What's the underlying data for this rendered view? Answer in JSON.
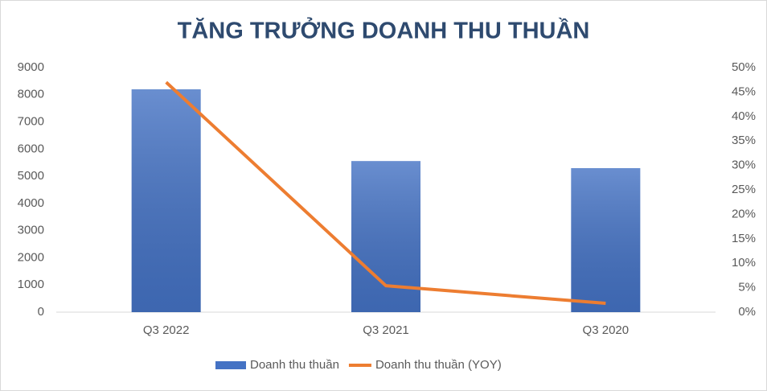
{
  "chart_data": {
    "type": "bar-line",
    "title": "TĂNG TRƯỞNG DOANH THU THUẦN",
    "categories": [
      "Q3 2022",
      "Q3 2021",
      "Q3 2020"
    ],
    "series": [
      {
        "name": "Doanh thu thuần",
        "type": "bar",
        "color": "#4472c4",
        "values": [
          8200,
          5560,
          5300
        ]
      },
      {
        "name": "Doanh thu thuần (YOY)",
        "type": "line",
        "axis": "y2",
        "color": "#ed7d31",
        "values": [
          47,
          5.4,
          1.8
        ]
      }
    ],
    "ylim": [
      0,
      9000
    ],
    "yticks": [
      0,
      1000,
      2000,
      3000,
      4000,
      5000,
      6000,
      7000,
      8000,
      9000
    ],
    "y2lim": [
      0,
      50
    ],
    "y2ticks": [
      {
        "value": 0,
        "label": "0%"
      },
      {
        "value": 5,
        "label": "5%"
      },
      {
        "value": 10,
        "label": "10%"
      },
      {
        "value": 15,
        "label": "15%"
      },
      {
        "value": 20,
        "label": "20%"
      },
      {
        "value": 25,
        "label": "25%"
      },
      {
        "value": 30,
        "label": "30%"
      },
      {
        "value": 35,
        "label": "35%"
      },
      {
        "value": 40,
        "label": "40%"
      },
      {
        "value": 45,
        "label": "45%"
      },
      {
        "value": 50,
        "label": "50%"
      }
    ],
    "grid": false,
    "legend": "bottom"
  }
}
